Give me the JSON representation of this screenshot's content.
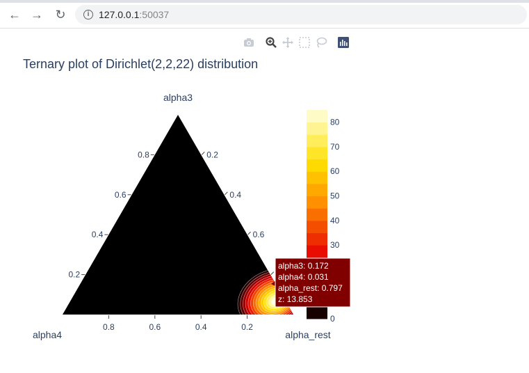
{
  "browser": {
    "url_host": "127.0.0.1",
    "url_port": ":50037",
    "back_icon": "arrow-left-icon",
    "forward_icon": "arrow-right-icon",
    "reload_icon": "reload-icon"
  },
  "modebar": {
    "icons": [
      "camera-icon",
      "zoom-icon",
      "pan-icon",
      "box-select-icon",
      "lasso-icon",
      "plotly-logo-icon"
    ]
  },
  "chart_data": {
    "type": "ternary-contour",
    "title": "Ternary plot of Dirichlet(2,2,22) distribution",
    "axes": {
      "a": {
        "title": "alpha3",
        "ticks": [
          "0.2",
          "0.4",
          "0.6",
          "0.8"
        ]
      },
      "b": {
        "title": "alpha4",
        "ticks": [
          "0.2",
          "0.4",
          "0.6",
          "0.8"
        ]
      },
      "c": {
        "title": "alpha_rest",
        "ticks": [
          "0.2",
          "0.4",
          "0.6",
          "0.8"
        ]
      }
    },
    "background_color": "#000000",
    "peak": {
      "alpha3": 0.04,
      "alpha4": 0.04,
      "alpha_rest": 0.92
    },
    "colorbar": {
      "range": [
        0,
        85
      ],
      "tick_values": [
        0,
        30,
        40,
        50,
        60,
        70,
        80
      ],
      "tick_labels": [
        "0",
        "30",
        "40",
        "50",
        "60",
        "70",
        "80"
      ],
      "colorscale": "Hot",
      "stops": [
        [
          0,
          "#000000"
        ],
        [
          0.3,
          "#e60000"
        ],
        [
          0.55,
          "#ff8c00"
        ],
        [
          0.75,
          "#ffe000"
        ],
        [
          1,
          "#ffffe0"
        ]
      ]
    },
    "hover": {
      "lines": [
        "alpha3: 0.172",
        "alpha4: 0.031",
        "alpha_rest: 0.797",
        "z: 13.853"
      ],
      "background": "#800000"
    }
  }
}
